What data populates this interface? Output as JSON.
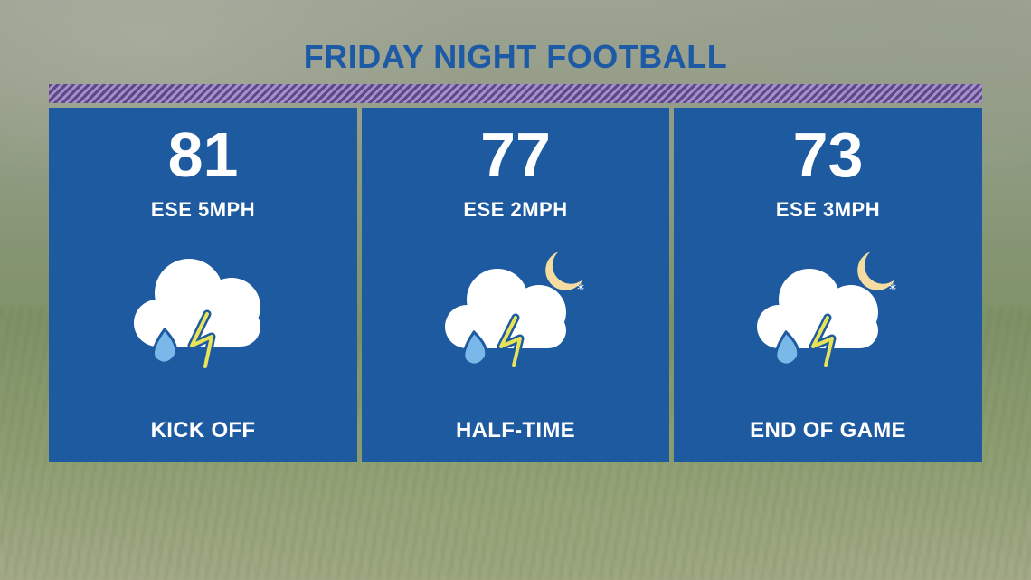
{
  "title": "FRIDAY NIGHT FOOTBALL",
  "colors": {
    "title": "#1c5aa6",
    "panel": "#1d5aa0",
    "stripe_dark": "#5c4a86",
    "stripe_light": "#a78fcb",
    "rain": "#7bb8ea",
    "lightning": "#e8e45a",
    "moon": "#f5dca0"
  },
  "panels": [
    {
      "temp": "81",
      "wind": "ESE 5MPH",
      "icon": "thunderstorm-icon",
      "label": "KICK OFF"
    },
    {
      "temp": "77",
      "wind": "ESE 2MPH",
      "icon": "night-thunderstorm-icon",
      "label": "HALF-TIME"
    },
    {
      "temp": "73",
      "wind": "ESE 3MPH",
      "icon": "night-thunderstorm-icon",
      "label": "END OF GAME"
    }
  ]
}
